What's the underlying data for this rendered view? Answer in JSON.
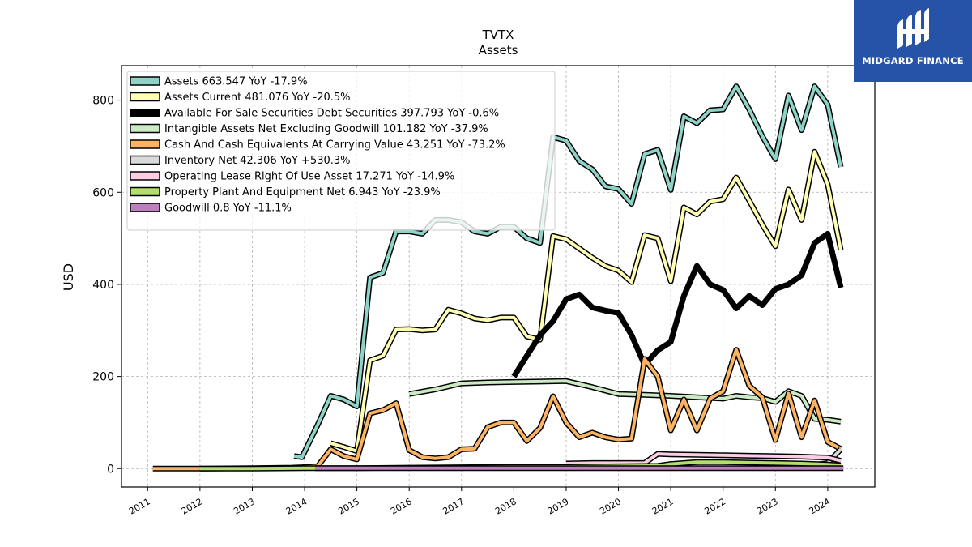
{
  "brand": {
    "name": "MIDGARD FINANCE"
  },
  "chart_data": {
    "type": "line",
    "title": "TVTX",
    "subtitle": "Assets",
    "xlabel": "",
    "ylabel": "USD",
    "xlim": [
      2010.5,
      2024.9
    ],
    "ylim": [
      -40,
      875
    ],
    "yticks": [
      0,
      200,
      400,
      600,
      800
    ],
    "xticks": [
      "2011",
      "2012",
      "2013",
      "2014",
      "2015",
      "2016",
      "2017",
      "2018",
      "2019",
      "2020",
      "2021",
      "2022",
      "2023",
      "2024"
    ],
    "grid": true,
    "legend_position": "top-left",
    "series": [
      {
        "name": "Assets",
        "legend_label": "Assets  663.547 YoY -17.9%",
        "color": "#8dd3c7",
        "points": [
          [
            2013.8,
            27
          ],
          [
            2013.95,
            25
          ],
          [
            2014.25,
            95
          ],
          [
            2014.5,
            158
          ],
          [
            2014.75,
            150
          ],
          [
            2015.0,
            135
          ],
          [
            2015.25,
            415
          ],
          [
            2015.5,
            425
          ],
          [
            2015.75,
            515
          ],
          [
            2016.0,
            515
          ],
          [
            2016.25,
            510
          ],
          [
            2016.5,
            540
          ],
          [
            2016.75,
            540
          ],
          [
            2017.0,
            535
          ],
          [
            2017.25,
            515
          ],
          [
            2017.5,
            510
          ],
          [
            2017.75,
            525
          ],
          [
            2018.0,
            525
          ],
          [
            2018.25,
            500
          ],
          [
            2018.5,
            490
          ],
          [
            2018.75,
            720
          ],
          [
            2019.0,
            712
          ],
          [
            2019.25,
            668
          ],
          [
            2019.5,
            650
          ],
          [
            2019.75,
            613
          ],
          [
            2020.0,
            607
          ],
          [
            2020.25,
            575
          ],
          [
            2020.5,
            683
          ],
          [
            2020.75,
            692
          ],
          [
            2021.0,
            605
          ],
          [
            2021.25,
            765
          ],
          [
            2021.5,
            750
          ],
          [
            2021.75,
            778
          ],
          [
            2022.0,
            780
          ],
          [
            2022.25,
            830
          ],
          [
            2022.5,
            780
          ],
          [
            2022.75,
            722
          ],
          [
            2023.0,
            672
          ],
          [
            2023.25,
            810
          ],
          [
            2023.5,
            735
          ],
          [
            2023.75,
            830
          ],
          [
            2024.0,
            790
          ],
          [
            2024.25,
            655
          ]
        ]
      },
      {
        "name": "Assets Current",
        "legend_label": "Assets Current  481.076 YoY -20.5%",
        "color": "#ffffb3",
        "points": [
          [
            2014.5,
            55
          ],
          [
            2014.75,
            47
          ],
          [
            2015.0,
            38
          ],
          [
            2015.25,
            235
          ],
          [
            2015.5,
            245
          ],
          [
            2015.75,
            302
          ],
          [
            2016.0,
            303
          ],
          [
            2016.25,
            300
          ],
          [
            2016.5,
            302
          ],
          [
            2016.75,
            345
          ],
          [
            2017.0,
            337
          ],
          [
            2017.25,
            326
          ],
          [
            2017.5,
            322
          ],
          [
            2017.75,
            328
          ],
          [
            2018.0,
            328
          ],
          [
            2018.25,
            287
          ],
          [
            2018.5,
            280
          ],
          [
            2018.75,
            505
          ],
          [
            2019.0,
            498
          ],
          [
            2019.25,
            478
          ],
          [
            2019.5,
            458
          ],
          [
            2019.75,
            440
          ],
          [
            2020.0,
            430
          ],
          [
            2020.25,
            405
          ],
          [
            2020.5,
            507
          ],
          [
            2020.75,
            500
          ],
          [
            2021.0,
            407
          ],
          [
            2021.25,
            567
          ],
          [
            2021.5,
            552
          ],
          [
            2021.75,
            580
          ],
          [
            2022.0,
            585
          ],
          [
            2022.25,
            632
          ],
          [
            2022.5,
            582
          ],
          [
            2022.75,
            530
          ],
          [
            2023.0,
            483
          ],
          [
            2023.25,
            606
          ],
          [
            2023.5,
            540
          ],
          [
            2023.75,
            688
          ],
          [
            2024.0,
            617
          ],
          [
            2024.25,
            475
          ]
        ]
      },
      {
        "name": "Available For Sale Securities Debt Securities",
        "legend_label": "Available For Sale Securities Debt Securities  397.793 YoY -0.6%",
        "color": "#000000",
        "points": [
          [
            2018.0,
            200
          ],
          [
            2018.25,
            245
          ],
          [
            2018.5,
            290
          ],
          [
            2018.75,
            320
          ],
          [
            2019.0,
            368
          ],
          [
            2019.25,
            378
          ],
          [
            2019.5,
            350
          ],
          [
            2019.75,
            343
          ],
          [
            2020.0,
            338
          ],
          [
            2020.25,
            290
          ],
          [
            2020.5,
            225
          ],
          [
            2020.75,
            257
          ],
          [
            2021.0,
            275
          ],
          [
            2021.25,
            375
          ],
          [
            2021.5,
            440
          ],
          [
            2021.75,
            400
          ],
          [
            2022.0,
            388
          ],
          [
            2022.25,
            348
          ],
          [
            2022.5,
            375
          ],
          [
            2022.75,
            355
          ],
          [
            2023.0,
            390
          ],
          [
            2023.25,
            400
          ],
          [
            2023.5,
            420
          ],
          [
            2023.75,
            490
          ],
          [
            2024.0,
            510
          ],
          [
            2024.25,
            393
          ]
        ]
      },
      {
        "name": "Intangible Assets Net Excluding Goodwill",
        "legend_label": "Intangible Assets Net Excluding Goodwill  101.182 YoY -37.9%",
        "color": "#ccebc5",
        "points": [
          [
            2016.0,
            162
          ],
          [
            2016.5,
            172
          ],
          [
            2017.0,
            185
          ],
          [
            2017.5,
            187
          ],
          [
            2018.0,
            188
          ],
          [
            2018.5,
            189
          ],
          [
            2019.0,
            190
          ],
          [
            2019.5,
            177
          ],
          [
            2020.0,
            162
          ],
          [
            2020.5,
            160
          ],
          [
            2021.0,
            158
          ],
          [
            2021.5,
            155
          ],
          [
            2022.0,
            152
          ],
          [
            2022.25,
            158
          ],
          [
            2022.5,
            155
          ],
          [
            2022.75,
            153
          ],
          [
            2023.0,
            145
          ],
          [
            2023.25,
            168
          ],
          [
            2023.5,
            158
          ],
          [
            2023.75,
            108
          ],
          [
            2024.0,
            106
          ],
          [
            2024.25,
            102
          ]
        ]
      },
      {
        "name": "Cash And Cash Equivalents At Carrying Value",
        "legend_label": "Cash And Cash Equivalents At Carrying Value  43.251 YoY -73.2%",
        "color": "#fdb462",
        "points": [
          [
            2011.1,
            0
          ],
          [
            2012.0,
            0
          ],
          [
            2013.0,
            1
          ],
          [
            2013.75,
            2
          ],
          [
            2013.95,
            3
          ],
          [
            2014.25,
            5
          ],
          [
            2014.5,
            42
          ],
          [
            2014.75,
            27
          ],
          [
            2015.0,
            20
          ],
          [
            2015.25,
            120
          ],
          [
            2015.5,
            127
          ],
          [
            2015.75,
            142
          ],
          [
            2016.0,
            40
          ],
          [
            2016.25,
            25
          ],
          [
            2016.5,
            22
          ],
          [
            2016.75,
            25
          ],
          [
            2017.0,
            42
          ],
          [
            2017.25,
            43
          ],
          [
            2017.5,
            90
          ],
          [
            2017.75,
            100
          ],
          [
            2018.0,
            100
          ],
          [
            2018.25,
            60
          ],
          [
            2018.5,
            88
          ],
          [
            2018.75,
            157
          ],
          [
            2019.0,
            100
          ],
          [
            2019.25,
            68
          ],
          [
            2019.5,
            78
          ],
          [
            2019.75,
            68
          ],
          [
            2020.0,
            63
          ],
          [
            2020.25,
            65
          ],
          [
            2020.5,
            238
          ],
          [
            2020.75,
            200
          ],
          [
            2021.0,
            83
          ],
          [
            2021.25,
            150
          ],
          [
            2021.5,
            83
          ],
          [
            2021.75,
            152
          ],
          [
            2022.0,
            168
          ],
          [
            2022.25,
            258
          ],
          [
            2022.5,
            180
          ],
          [
            2022.75,
            155
          ],
          [
            2023.0,
            62
          ],
          [
            2023.25,
            163
          ],
          [
            2023.5,
            68
          ],
          [
            2023.75,
            148
          ],
          [
            2024.0,
            58
          ],
          [
            2024.25,
            43
          ]
        ]
      },
      {
        "name": "Inventory Net",
        "legend_label": "Inventory Net  42.306 YoY +530.3%",
        "color": "#d9d9d9",
        "points": [
          [
            2023.0,
            4
          ],
          [
            2023.25,
            5
          ],
          [
            2023.5,
            5
          ],
          [
            2023.75,
            8
          ],
          [
            2024.0,
            12
          ],
          [
            2024.25,
            42
          ]
        ]
      },
      {
        "name": "Operating Lease Right Of Use Asset",
        "legend_label": "Operating Lease Right Of Use Asset  17.271 YoY -14.9%",
        "color": "#fccde5",
        "points": [
          [
            2019.0,
            11
          ],
          [
            2019.5,
            12
          ],
          [
            2020.0,
            12
          ],
          [
            2020.5,
            12
          ],
          [
            2020.75,
            32
          ],
          [
            2021.0,
            31
          ],
          [
            2021.5,
            30
          ],
          [
            2022.0,
            29
          ],
          [
            2022.5,
            28
          ],
          [
            2023.0,
            27
          ],
          [
            2023.5,
            26
          ],
          [
            2023.75,
            25
          ],
          [
            2024.0,
            24
          ],
          [
            2024.25,
            17
          ]
        ]
      },
      {
        "name": "Property Plant And Equipment Net",
        "legend_label": "Property Plant And Equipment Net  6.943 YoY -23.9%",
        "color": "#b3de69",
        "points": [
          [
            2012.0,
            0
          ],
          [
            2013.0,
            0
          ],
          [
            2014.0,
            1
          ],
          [
            2015.0,
            1
          ],
          [
            2016.0,
            2
          ],
          [
            2017.0,
            3
          ],
          [
            2018.0,
            4
          ],
          [
            2019.0,
            4
          ],
          [
            2020.0,
            5
          ],
          [
            2020.75,
            6
          ],
          [
            2021.0,
            10
          ],
          [
            2021.5,
            14
          ],
          [
            2022.0,
            14
          ],
          [
            2022.5,
            13
          ],
          [
            2023.0,
            12
          ],
          [
            2023.5,
            11
          ],
          [
            2024.0,
            9
          ],
          [
            2024.25,
            7
          ]
        ]
      },
      {
        "name": "Goodwill",
        "legend_label": "Goodwill  0.8 YoY -11.1%",
        "color": "#bc80bd",
        "points": [
          [
            2014.2,
            1
          ],
          [
            2015.0,
            1
          ],
          [
            2016.0,
            1
          ],
          [
            2017.0,
            1
          ],
          [
            2018.0,
            1
          ],
          [
            2019.0,
            1
          ],
          [
            2020.0,
            1
          ],
          [
            2021.0,
            1
          ],
          [
            2022.0,
            1
          ],
          [
            2023.0,
            1
          ],
          [
            2024.0,
            1
          ],
          [
            2024.3,
            1
          ]
        ]
      }
    ]
  }
}
